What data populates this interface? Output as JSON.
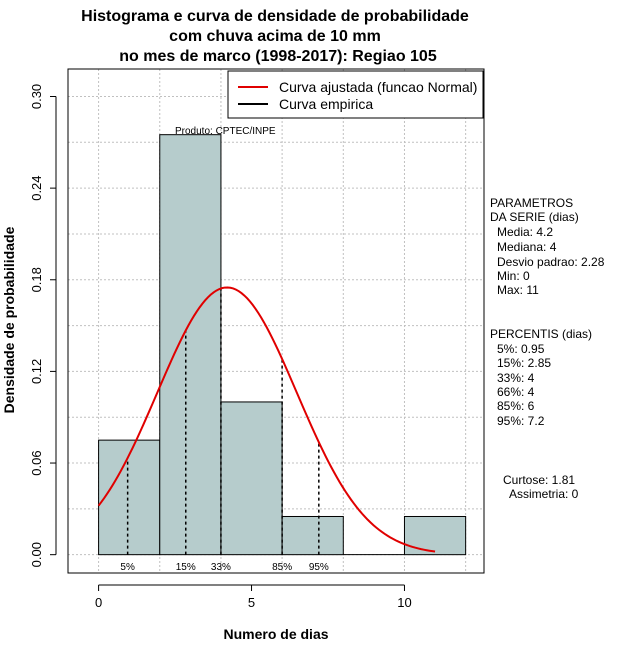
{
  "chart_data": {
    "type": "bar",
    "title_lines": [
      "Histograma e curva de densidade de probabilidade",
      "com chuva acima de 10 mm",
      "no mes de marco (1998-2017): Regiao 105"
    ],
    "xlabel": "Numero de dias",
    "ylabel": "Densidade de probabilidade",
    "xlim": [
      -1,
      12.6
    ],
    "ylim": [
      -0.012,
      0.318
    ],
    "x_ticks": [
      0,
      5,
      10
    ],
    "y_ticks": [
      0.0,
      0.06,
      0.12,
      0.18,
      0.24,
      0.3
    ],
    "y_tick_labels": [
      "0.00",
      "0.06",
      "0.12",
      "0.18",
      "0.24",
      "0.30"
    ],
    "grid_x": [
      0,
      2,
      4,
      6,
      8,
      10,
      12
    ],
    "bars": [
      {
        "x0": 0,
        "x1": 2,
        "density": 0.075
      },
      {
        "x0": 2,
        "x1": 4,
        "density": 0.275
      },
      {
        "x0": 4,
        "x1": 6,
        "density": 0.1
      },
      {
        "x0": 6,
        "x1": 8,
        "density": 0.025
      },
      {
        "x0": 8,
        "x1": 10,
        "density": 0.0
      },
      {
        "x0": 10,
        "x1": 12,
        "density": 0.025
      }
    ],
    "bar_color": "#b6cccc",
    "normal_curve": {
      "mean": 4.2,
      "sd": 2.28,
      "x_from": 0,
      "x_to": 11,
      "color": "#e00000"
    },
    "percentile_lines": [
      {
        "label": "5%",
        "x": 0.95
      },
      {
        "label": "15%",
        "x": 2.85
      },
      {
        "label": "33%",
        "x": 4
      },
      {
        "label": "85%",
        "x": 6
      },
      {
        "label": "95%",
        "x": 7.2
      }
    ],
    "legend": {
      "position": "top-right",
      "items": [
        {
          "label": "Curva ajustada (funcao Normal)",
          "color": "#e00000"
        },
        {
          "label": "Curva empirica",
          "color": "#000000"
        }
      ]
    },
    "product_label": "Produto: CPTEC/INPE"
  },
  "side_panel": {
    "params_title": [
      "PARAMETROS",
      "DA SERIE (dias)"
    ],
    "params": [
      "Media: 4.2",
      "Mediana: 4",
      "Desvio padrao: 2.28",
      "Min: 0",
      "Max: 11"
    ],
    "percentis_title": "PERCENTIS (dias)",
    "percentis": [
      "5%: 0.95",
      "15%: 2.85",
      "33%: 4",
      "66%: 4",
      "85%: 6",
      "95%: 7.2"
    ],
    "curtose": "Curtose: 1.81",
    "assimetria": "Assimetria: 0"
  }
}
